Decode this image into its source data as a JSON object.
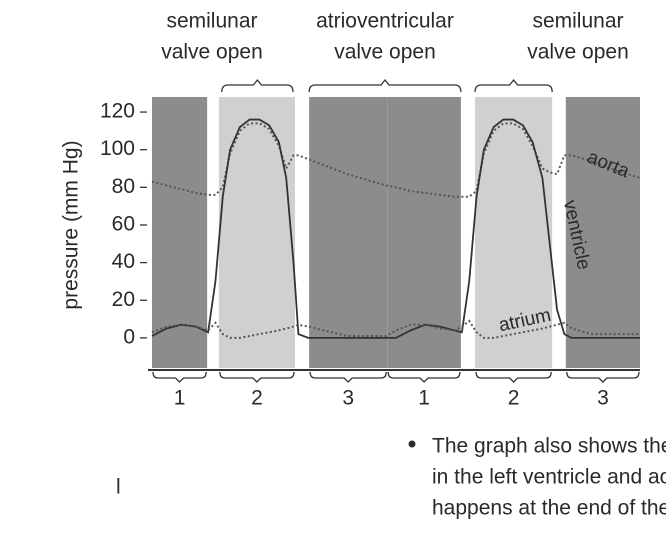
{
  "chart_data": {
    "type": "line",
    "ylabel": "pressure (mm Hg)",
    "ylim": [
      -16,
      128
    ],
    "yticks": [
      0,
      20,
      40,
      60,
      80,
      100,
      120
    ],
    "xlim": [
      0,
      100
    ],
    "x": [
      0,
      3,
      6,
      9,
      11.5,
      13,
      14.5,
      16,
      18,
      20,
      22,
      24,
      26,
      27.5,
      29,
      30,
      32,
      40,
      48,
      50,
      53,
      56,
      59,
      62,
      63.5,
      65,
      66.5,
      68,
      70,
      72,
      74,
      76,
      78,
      80,
      81.5,
      83,
      84.5,
      86,
      90,
      95,
      100
    ],
    "series": [
      {
        "name": "aorta",
        "color": "#555555",
        "style": "dotted",
        "values": [
          83,
          81,
          79,
          77,
          76,
          76,
          80,
          98,
          110,
          114,
          114,
          111,
          102,
          90,
          97,
          97,
          95,
          87,
          81,
          80,
          78,
          77,
          76,
          75,
          75,
          75,
          78,
          98,
          110,
          114,
          114,
          111,
          102,
          90,
          88,
          87,
          97,
          97,
          94,
          89,
          85
        ]
      },
      {
        "name": "ventricle",
        "color": "#333333",
        "style": "solid",
        "values": [
          1,
          5,
          7,
          6,
          3,
          30,
          75,
          100,
          112,
          116,
          116,
          113,
          104,
          85,
          40,
          2,
          0,
          0,
          0,
          0,
          4,
          7,
          6,
          4,
          3,
          30,
          75,
          100,
          112,
          116,
          116,
          113,
          104,
          85,
          50,
          15,
          2,
          0,
          0,
          0,
          0
        ]
      },
      {
        "name": "atrium",
        "color": "#555555",
        "style": "dotted",
        "values": [
          3,
          6,
          7,
          6,
          4,
          8,
          2,
          0,
          0,
          1,
          2,
          3,
          4,
          5,
          6,
          7,
          6,
          1,
          1,
          4,
          7,
          7,
          5,
          4,
          6,
          9,
          3,
          0,
          0,
          1,
          2,
          3,
          4,
          5,
          6,
          7,
          8,
          5,
          2,
          2,
          2
        ]
      }
    ],
    "phases": [
      {
        "label": "1",
        "start": 0,
        "end": 11.3,
        "shade": "#8c8c8c"
      },
      {
        "label": "2",
        "start": 13.7,
        "end": 29.3,
        "shade": "#d0d0d0"
      },
      {
        "label": "3",
        "start": 32.2,
        "end": 48.2,
        "shade": "#8c8c8c"
      },
      {
        "label": "1",
        "start": 48.2,
        "end": 63.3,
        "shade": "#8c8c8c"
      },
      {
        "label": "2",
        "start": 66.2,
        "end": 82,
        "shade": "#d0d0d0"
      },
      {
        "label": "3",
        "start": 84.8,
        "end": 100,
        "shade": "#8c8c8c"
      }
    ],
    "valve_labels": [
      {
        "lines": [
          "semilunar",
          "valve open"
        ],
        "start": 14.3,
        "end": 28.9
      },
      {
        "lines": [
          "atrioventricular",
          "valve open"
        ],
        "start": 32.2,
        "end": 63.3
      },
      {
        "lines": [
          "semilunar",
          "valve open"
        ],
        "start": 66.2,
        "end": 82
      }
    ]
  },
  "fragment": "l",
  "bullet": {
    "lines": [
      "The graph also shows the minimum pressures reached",
      "in the left ventricle and aorta (diastolic pressure). This",
      "happens at the end of the period when the ventricle is"
    ]
  }
}
